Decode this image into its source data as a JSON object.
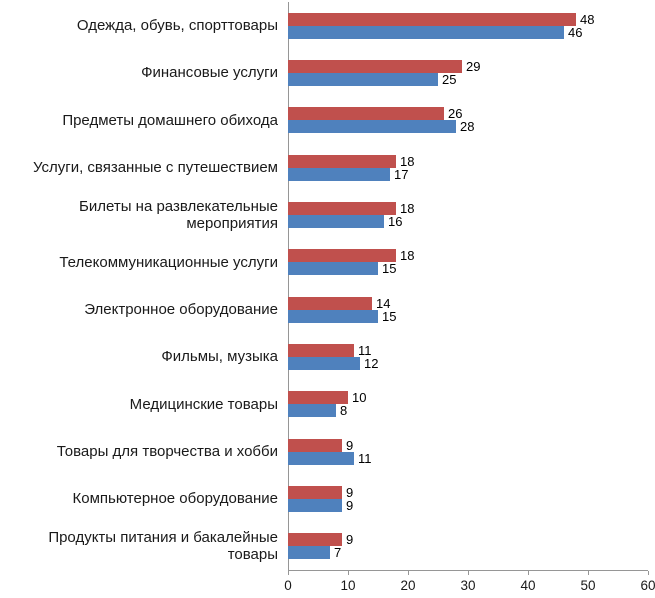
{
  "chart_data": {
    "type": "bar",
    "orientation": "horizontal",
    "title": "",
    "xlabel": "",
    "ylabel": "",
    "xlim": [
      0,
      60
    ],
    "x_ticks": [
      0,
      10,
      20,
      30,
      40,
      50,
      60
    ],
    "grid": false,
    "legend": false,
    "data_labels": true,
    "categories": [
      "Одежда, обувь, спорттовары",
      "Финансовые услуги",
      "Предметы домашнего обихода",
      "Услуги, связанные с путешествием",
      "Билеты на развлекательные мероприятия",
      "Телекоммуникационные услуги",
      "Электронное оборудование",
      "Фильмы, музыка",
      "Медицинские товары",
      "Товары для творчества и хобби",
      "Компьютерное оборудование",
      "Продукты питания и бакалейные товары"
    ],
    "series": [
      {
        "name": "red",
        "color": "#C0504D",
        "values": [
          48,
          29,
          26,
          18,
          18,
          18,
          14,
          11,
          10,
          9,
          9,
          9
        ]
      },
      {
        "name": "blue",
        "color": "#4F81BD",
        "values": [
          46,
          25,
          28,
          17,
          16,
          15,
          15,
          12,
          8,
          11,
          9,
          7
        ]
      }
    ]
  }
}
